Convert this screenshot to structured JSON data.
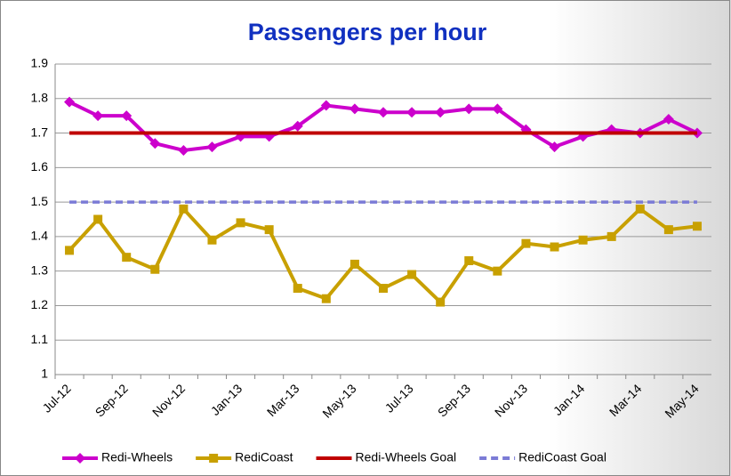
{
  "chart_data": {
    "type": "line",
    "title": "Passengers per hour",
    "categories": [
      "Jul-12",
      null,
      "Sep-12",
      null,
      "Nov-12",
      null,
      "Jan-13",
      null,
      "Mar-13",
      null,
      "May-13",
      null,
      "Jul-13",
      null,
      "Sep-13",
      null,
      "Nov-13",
      null,
      "Jan-14",
      null,
      "Mar-14",
      null,
      "May-14"
    ],
    "series": [
      {
        "name": "Redi-Wheels",
        "color": "#cc00cc",
        "marker": "diamond",
        "line_style": "solid",
        "values": [
          1.79,
          1.75,
          1.75,
          1.67,
          1.65,
          1.66,
          1.69,
          1.69,
          1.72,
          1.78,
          1.77,
          1.76,
          1.76,
          1.76,
          1.77,
          1.77,
          1.71,
          1.66,
          1.69,
          1.71,
          1.7,
          1.74,
          1.7
        ]
      },
      {
        "name": "RediCoast",
        "color": "#c8a000",
        "marker": "square",
        "line_style": "solid",
        "values": [
          1.36,
          1.45,
          1.34,
          1.305,
          1.48,
          1.39,
          1.44,
          1.42,
          1.25,
          1.22,
          1.32,
          1.25,
          1.29,
          1.21,
          1.33,
          1.3,
          1.38,
          1.37,
          1.39,
          1.4,
          1.48,
          1.42,
          1.43
        ]
      },
      {
        "name": "Redi-Wheels Goal",
        "color": "#c00000",
        "marker": "none",
        "line_style": "solid",
        "values": [
          1.7,
          1.7,
          1.7,
          1.7,
          1.7,
          1.7,
          1.7,
          1.7,
          1.7,
          1.7,
          1.7,
          1.7,
          1.7,
          1.7,
          1.7,
          1.7,
          1.7,
          1.7,
          1.7,
          1.7,
          1.7,
          1.7,
          1.7
        ]
      },
      {
        "name": "RediCoast Goal",
        "color": "#7b7bd6",
        "marker": "none",
        "line_style": "dashed",
        "values": [
          1.5,
          1.5,
          1.5,
          1.5,
          1.5,
          1.5,
          1.5,
          1.5,
          1.5,
          1.5,
          1.5,
          1.5,
          1.5,
          1.5,
          1.5,
          1.5,
          1.5,
          1.5,
          1.5,
          1.5,
          1.5,
          1.5,
          1.5
        ]
      }
    ],
    "ylim": [
      1,
      1.9
    ],
    "yticks": [
      1,
      1.1,
      1.2,
      1.3,
      1.4,
      1.5,
      1.6,
      1.7,
      1.8,
      1.9
    ],
    "grid": true,
    "legend": "bottom"
  }
}
